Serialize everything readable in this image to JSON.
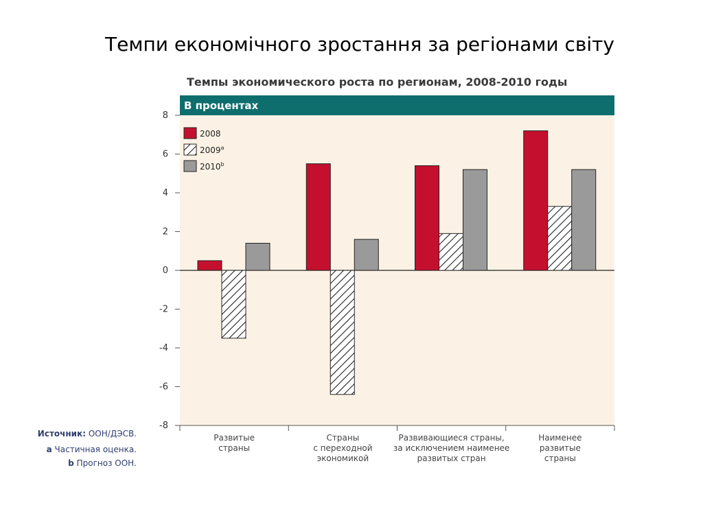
{
  "slide": {
    "title": "Темпи економічного зростання за регіонами світу"
  },
  "colors": {
    "header": "#0e6e6e",
    "plot_bg": "#fbf2e5",
    "red": "#c4102e",
    "gray": "#9a9a9a",
    "axis": "#555555",
    "source_text": "#2f3f6e"
  },
  "chart_data": {
    "type": "bar",
    "title": "Темпы экономического роста по регионам, 2008-2010 годы",
    "subtitle": "В процентах",
    "categories": [
      [
        "Развитые",
        "страны"
      ],
      [
        "Страны",
        "с переходной",
        "экономикой"
      ],
      [
        "Развивающиеся страны,",
        "за исключением наименее",
        "развитых стран"
      ],
      [
        "Наименее",
        "развитые",
        "страны"
      ]
    ],
    "series": [
      {
        "name": "2008",
        "sup": "",
        "style": "red",
        "values": [
          0.5,
          5.5,
          5.4,
          7.2
        ]
      },
      {
        "name": "2009",
        "sup": "a",
        "style": "hatched",
        "values": [
          -3.5,
          -6.4,
          1.9,
          3.3
        ]
      },
      {
        "name": "2010",
        "sup": "b",
        "style": "gray",
        "values": [
          1.4,
          1.6,
          5.2,
          5.2
        ]
      }
    ],
    "ylim": [
      -8,
      8
    ],
    "yticks": [
      8,
      6,
      4,
      2,
      0,
      -2,
      -4,
      -6,
      -8
    ],
    "legend": "top-left"
  },
  "notes": {
    "source_label": "Источник:",
    "source_value": "ООН/ДЭСВ.",
    "note_a_key": "a",
    "note_a_text": "Частичная оценка.",
    "note_b_key": "b",
    "note_b_text": "Прогноз ООН."
  }
}
